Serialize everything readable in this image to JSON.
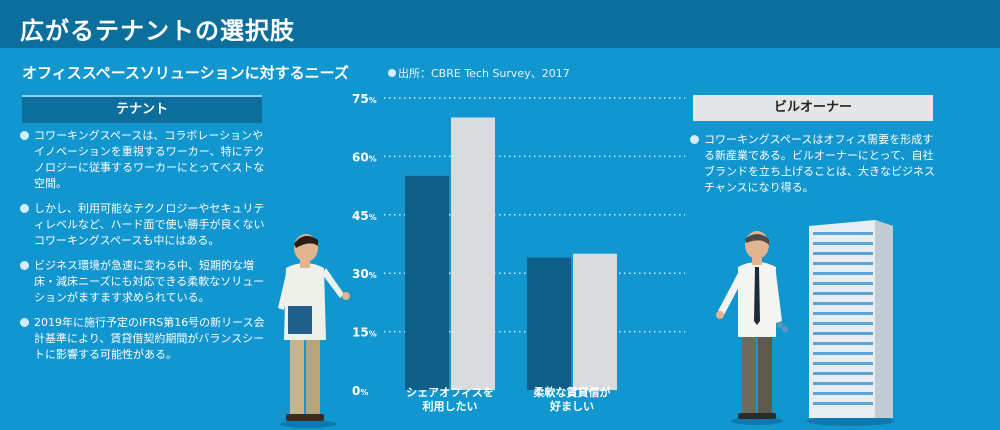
{
  "header": {
    "title": "広がるテナントの選択肢",
    "subtitle": "オフィススペースソリューションに対するニーズ",
    "source": "出所：CBRE Tech Survey、2017"
  },
  "tenant": {
    "heading": "テナント",
    "bullets": [
      "コワーキングスペースは、コラボレーションやイノベーションを重視するワーカー、特にテクノロジーに従事するワーカーにとってベストな空間。",
      "しかし、利用可能なテクノロジーやセキュリティレベルなど、ハード面で使い勝手が良くないコワーキングスペースも中にはある。",
      "ビジネス環境が急速に変わる中、短期的な増床・減床ニーズにも対応できる柔軟なソリューションがますます求められている。",
      "2019年に施行予定のIFRS第16号の新リース会計基準により、賃貸借契約期間がバランスシートに影響する可能性がある。"
    ]
  },
  "owner": {
    "heading": "ビルオーナー",
    "bullets": [
      "コワーキングスペースはオフィス需要を形成する新産業である。ビルオーナーにとって、自社ブランドを立ち上げることは、大きなビジネスチャンスになり得る。"
    ]
  },
  "chart_data": {
    "type": "bar",
    "categories": [
      "シェアオフィスを\n利用したい",
      "柔軟な賃貸借が\n好ましい"
    ],
    "series": [
      {
        "color": "#0d5f87",
        "values": [
          55,
          34
        ]
      },
      {
        "color": "#d9dcdf",
        "values": [
          70,
          35
        ]
      }
    ],
    "ylim": [
      0,
      75
    ],
    "yticks": [
      0,
      15,
      30,
      45,
      60,
      75
    ],
    "ytick_suffix": "%",
    "grid": true
  },
  "colors": {
    "background": "#1296cf",
    "title_bar": "#0c6e9d",
    "dark_bar": "#0d5f87",
    "light_bar": "#d9dcdf"
  }
}
